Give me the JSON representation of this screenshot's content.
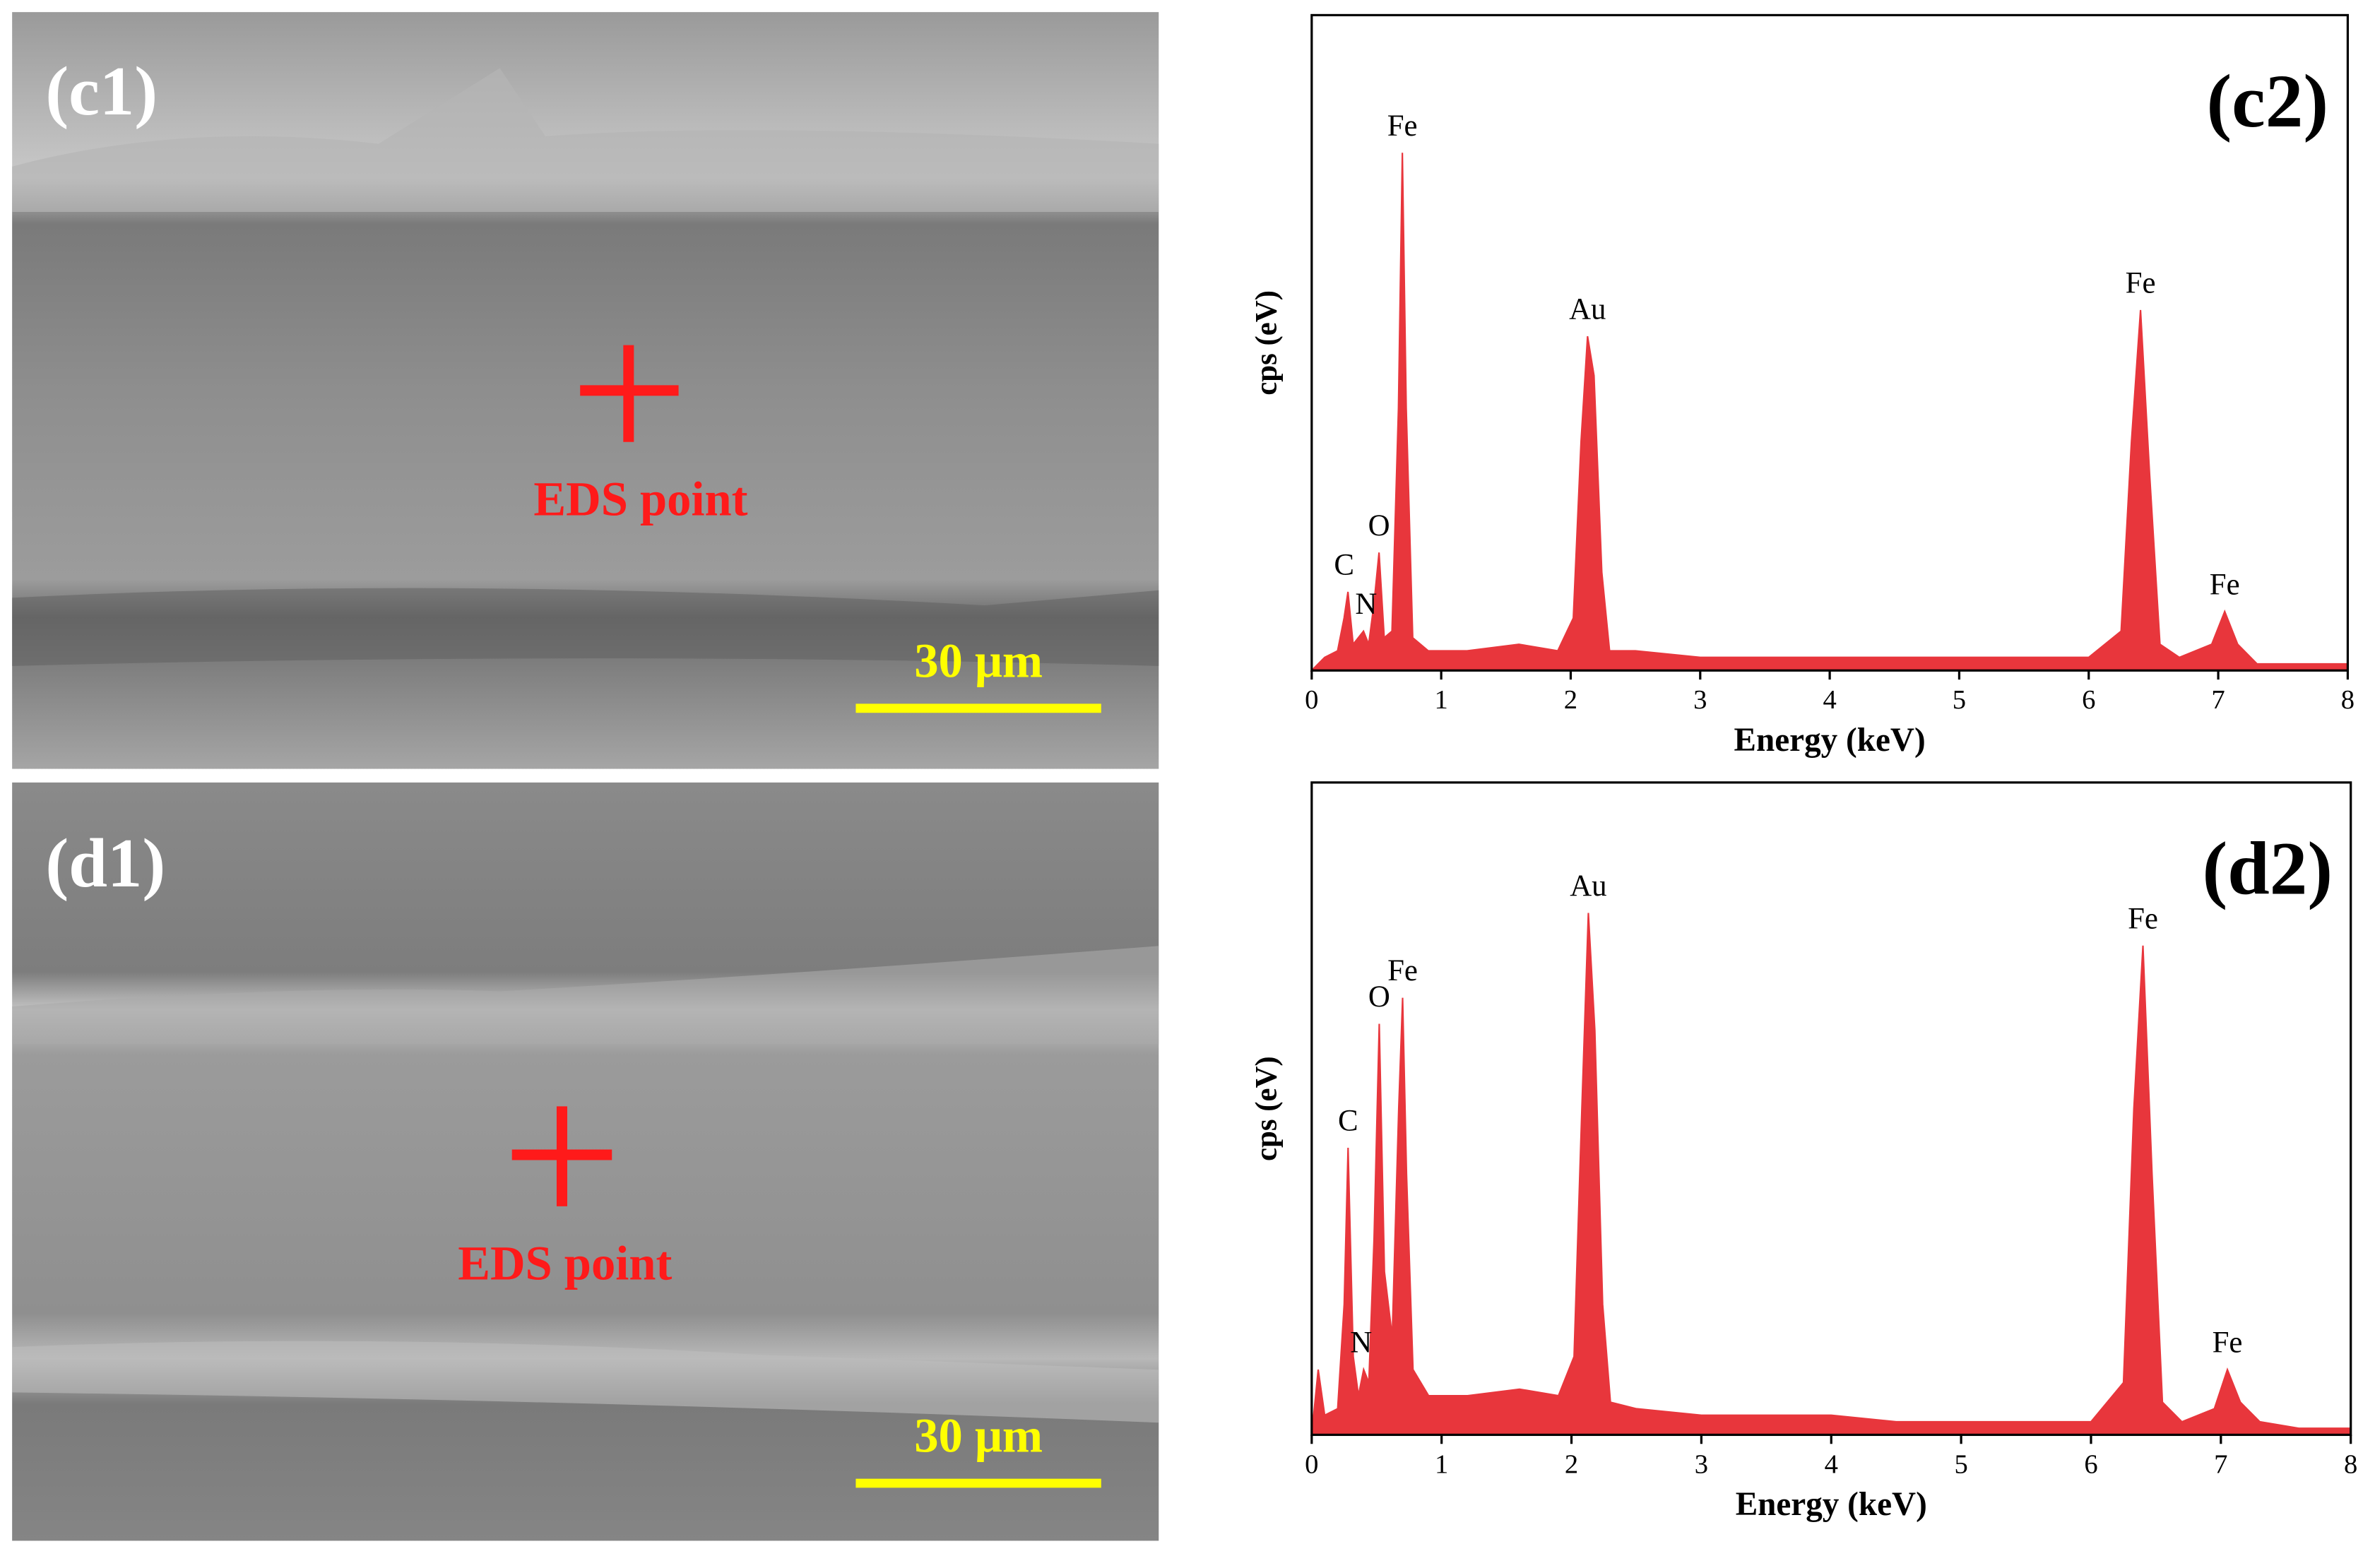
{
  "images": [
    {
      "label": "(c1)",
      "marker": "EDS point",
      "scale_bar": "30 μm"
    },
    {
      "label": "(d1)",
      "marker": "EDS point",
      "scale_bar": "30 μm"
    }
  ],
  "chart_data": [
    {
      "type": "area",
      "title": "(c2)",
      "x_label": "Energy (keV)",
      "y_label": "cps (eV)",
      "color": "#e8363c",
      "x": [
        0,
        0.05,
        0.1,
        0.2,
        0.25,
        0.28,
        0.32,
        0.36,
        0.4,
        0.44,
        0.48,
        0.52,
        0.56,
        0.62,
        0.67,
        0.7,
        0.73,
        0.78,
        0.9,
        1.2,
        1.6,
        1.9,
        2.02,
        2.08,
        2.13,
        2.18,
        2.24,
        2.3,
        2.5,
        3,
        3.5,
        4,
        4.5,
        5,
        5.5,
        6,
        6.25,
        6.33,
        6.4,
        6.47,
        6.55,
        6.7,
        6.95,
        7.05,
        7.15,
        7.3,
        7.6,
        8
      ],
      "values": [
        0,
        1,
        2,
        3,
        8,
        12,
        4,
        5,
        6,
        4,
        10,
        18,
        5,
        6,
        40,
        79,
        40,
        5,
        3,
        3,
        4,
        3,
        8,
        35,
        51,
        45,
        15,
        3,
        3,
        2,
        2,
        2,
        2,
        2,
        2,
        2,
        6,
        35,
        55,
        30,
        4,
        2,
        4,
        9,
        4,
        1,
        1,
        1
      ],
      "xlim": [
        0,
        8
      ],
      "xticks": [
        0,
        1,
        2,
        3,
        4,
        5,
        6,
        7,
        8
      ],
      "ylim": [
        0,
        100
      ],
      "annotations": [
        {
          "text": "C",
          "x": 0.25
        },
        {
          "text": "N",
          "x": 0.42
        },
        {
          "text": "O",
          "x": 0.52
        },
        {
          "text": "Fe",
          "x": 0.7
        },
        {
          "text": "Au",
          "x": 2.13
        },
        {
          "text": "Fe",
          "x": 6.4
        },
        {
          "text": "Fe",
          "x": 7.05
        }
      ]
    },
    {
      "type": "area",
      "title": "(d2)",
      "x_label": "Energy (keV)",
      "y_label": "cps (eV)",
      "color": "#e8363c",
      "x": [
        0,
        0.05,
        0.1,
        0.2,
        0.25,
        0.28,
        0.32,
        0.36,
        0.4,
        0.44,
        0.48,
        0.52,
        0.56,
        0.62,
        0.67,
        0.7,
        0.73,
        0.78,
        0.9,
        1.2,
        1.6,
        1.9,
        2.02,
        2.08,
        2.13,
        2.18,
        2.24,
        2.3,
        2.5,
        3,
        3.5,
        4,
        4.5,
        5,
        5.5,
        6,
        6.25,
        6.33,
        6.4,
        6.47,
        6.55,
        6.7,
        6.95,
        7.05,
        7.15,
        7.3,
        7.6,
        8
      ],
      "values": [
        0,
        10,
        3,
        4,
        20,
        44,
        12,
        6,
        10,
        8,
        30,
        63,
        25,
        15,
        50,
        67,
        40,
        10,
        6,
        6,
        7,
        6,
        12,
        50,
        80,
        62,
        20,
        5,
        4,
        3,
        3,
        3,
        2,
        2,
        2,
        2,
        8,
        50,
        75,
        40,
        5,
        2,
        4,
        10,
        5,
        2,
        1,
        1
      ],
      "xlim": [
        0,
        8
      ],
      "xticks": [
        0,
        1,
        2,
        3,
        4,
        5,
        6,
        7,
        8
      ],
      "ylim": [
        0,
        100
      ],
      "annotations": [
        {
          "text": "C",
          "x": 0.28
        },
        {
          "text": "N",
          "x": 0.38
        },
        {
          "text": "O",
          "x": 0.52
        },
        {
          "text": "Fe",
          "x": 0.7
        },
        {
          "text": "Au",
          "x": 2.13
        },
        {
          "text": "Fe",
          "x": 6.4
        },
        {
          "text": "Fe",
          "x": 7.05
        }
      ]
    }
  ]
}
